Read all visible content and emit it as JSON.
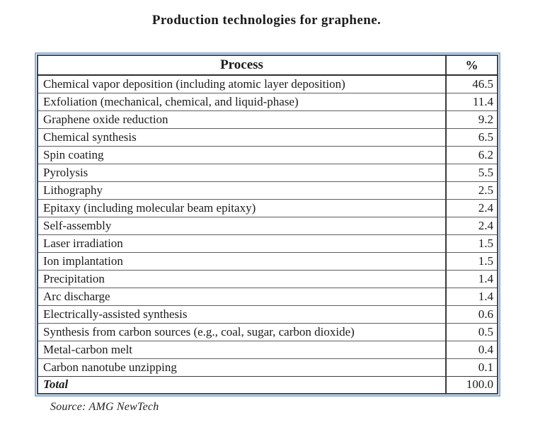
{
  "title": "Production technologies for graphene.",
  "table": {
    "headers": {
      "process": "Process",
      "percent": "%"
    },
    "rows": [
      {
        "process": "Chemical vapor deposition (including atomic layer deposition)",
        "percent": "46.5"
      },
      {
        "process": "Exfoliation (mechanical, chemical, and liquid-phase)",
        "percent": "11.4"
      },
      {
        "process": "Graphene oxide reduction",
        "percent": "9.2"
      },
      {
        "process": "Chemical synthesis",
        "percent": "6.5"
      },
      {
        "process": "Spin coating",
        "percent": "6.2"
      },
      {
        "process": "Pyrolysis",
        "percent": "5.5"
      },
      {
        "process": "Lithography",
        "percent": "2.5"
      },
      {
        "process": "Epitaxy (including molecular beam epitaxy)",
        "percent": "2.4"
      },
      {
        "process": "Self-assembly",
        "percent": "2.4"
      },
      {
        "process": "Laser irradiation",
        "percent": "1.5"
      },
      {
        "process": "Ion implantation",
        "percent": "1.5"
      },
      {
        "process": "Precipitation",
        "percent": "1.4"
      },
      {
        "process": "Arc discharge",
        "percent": "1.4"
      },
      {
        "process": "Electrically-assisted synthesis",
        "percent": "0.6"
      },
      {
        "process": "Synthesis from carbon sources (e.g., coal, sugar, carbon dioxide)",
        "percent": "0.5"
      },
      {
        "process": "Metal-carbon melt",
        "percent": "0.4"
      },
      {
        "process": "Carbon nanotube unzipping",
        "percent": "0.1"
      }
    ],
    "total": {
      "label": "Total",
      "percent": "100.0"
    }
  },
  "source": "Source: AMG NewTech",
  "colors": {
    "outer_border": "#8fadd1",
    "inner_border": "#2a4d79",
    "grid_line": "#5f5f5f",
    "column_divider": "#3a3a3a",
    "text": "#1b1b1b"
  }
}
